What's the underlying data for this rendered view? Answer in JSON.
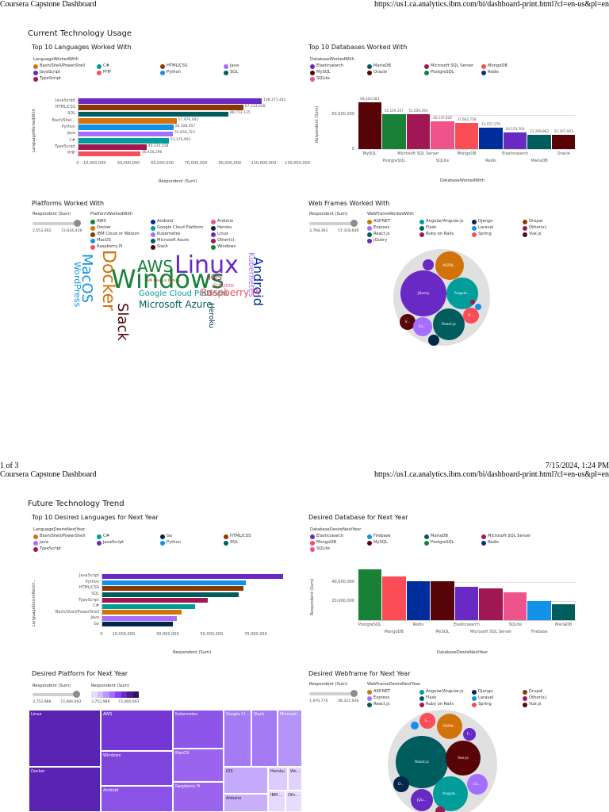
{
  "header1": {
    "left": "Coursera Capstone Dashboard",
    "right": "https://us1.ca.analytics.ibm.com/bi/dashboard-print.html?cl=en-us&pl=en"
  },
  "footer1": {
    "page": "1 of 3",
    "date": "7/15/2024, 1:24 PM"
  },
  "header2": {
    "left": "Coursera Capstone Dashboard",
    "right": "https://us1.ca.analytics.ibm.com/bi/dashboard-print.html?cl=en-us&pl=en"
  },
  "section1": {
    "title": "Current Technology Usage"
  },
  "section2": {
    "title": "Future Technology Trend"
  },
  "colors": {
    "purple": "#6929c4",
    "cyan": "#1192e8",
    "teal": "#005d5d",
    "magenta": "#9f1853",
    "red": "#fa4d56",
    "darkred": "#570408",
    "green": "#198038",
    "navy": "#002d9c",
    "pink": "#ee538b",
    "brown": "#b28600",
    "tealc": "#009d9a",
    "dark": "#012749",
    "orange": "#8a3800",
    "lavender": "#a56eff"
  },
  "lang_chart": {
    "title": "Top 10 Languages Worked With",
    "legend_title": "LanguageWorkedWith",
    "legend": [
      {
        "label": "Bash/Shell/PowerShell",
        "color": "#d2730a"
      },
      {
        "label": "C#",
        "color": "#009d9a"
      },
      {
        "label": "HTML/CSS",
        "color": "#8a3800"
      },
      {
        "label": "Java",
        "color": "#a56eff"
      },
      {
        "label": "JavaScript",
        "color": "#6929c4"
      },
      {
        "label": "PHP",
        "color": "#fa4d56"
      },
      {
        "label": "Python",
        "color": "#1192e8"
      },
      {
        "label": "SQL",
        "color": "#005d5d"
      },
      {
        "label": "TypeScript",
        "color": "#9f1853"
      }
    ],
    "ylabel": "LanguageWorkedWith",
    "xlabel": "Respondent (Sum)"
  },
  "db_chart": {
    "title": "Top 10 Databases Worked With",
    "legend_title": "DatabaseWorkedWith",
    "legend": [
      {
        "label": "Elasticsearch",
        "color": "#6929c4"
      },
      {
        "label": "MariaDB",
        "color": "#005d5d"
      },
      {
        "label": "Microsoft SQL Server",
        "color": "#9f1853"
      },
      {
        "label": "MongoDB",
        "color": "#fa4d56"
      },
      {
        "label": "MySQL",
        "color": "#570408"
      },
      {
        "label": "Oracle",
        "color": "#570408"
      },
      {
        "label": "PostgreSQL",
        "color": "#198038"
      },
      {
        "label": "Redis",
        "color": "#002d9c"
      },
      {
        "label": "SQLite",
        "color": "#ee538b"
      }
    ],
    "ylabel": "Respondent (Sum)",
    "xlabel": "DatabaseWorkedWith"
  },
  "platform_chart": {
    "title": "Platforms Worked With",
    "slider_label": "Respondent (Sum)",
    "slider_min": "2,553,392",
    "slider_max": "72,834,418",
    "legend_title": "PlatformWorkedWith",
    "legend": [
      {
        "label": "AWS",
        "color": "#198038"
      },
      {
        "label": "Android",
        "color": "#002d9c"
      },
      {
        "label": "Arduino",
        "color": "#ee538b"
      },
      {
        "label": "Docker",
        "color": "#d2730a"
      },
      {
        "label": "Google Cloud Platform",
        "color": "#009d9a"
      },
      {
        "label": "Heroku",
        "color": "#012749"
      },
      {
        "label": "IBM Cloud or Watson",
        "color": "#8a3800"
      },
      {
        "label": "Kubernetes",
        "color": "#a56eff"
      },
      {
        "label": "Linux",
        "color": "#6929c4"
      },
      {
        "label": "MacOS",
        "color": "#1192e8"
      },
      {
        "label": "Microsoft Azure",
        "color": "#005d5d"
      },
      {
        "label": "Other(s):",
        "color": "#9f1853"
      },
      {
        "label": "Raspberry Pi",
        "color": "#fa4d56"
      },
      {
        "label": "Slack",
        "color": "#570408"
      },
      {
        "label": "Windows",
        "color": "#198038"
      }
    ],
    "words": [
      {
        "text": "AWS",
        "color": "#198038"
      },
      {
        "text": "Linux",
        "color": "#6929c4"
      },
      {
        "text": "Windows",
        "color": "#198038"
      },
      {
        "text": "Docker",
        "color": "#d2730a"
      },
      {
        "text": "MacOS",
        "color": "#1192e8"
      },
      {
        "text": "WordPress",
        "color": "#1192e8"
      },
      {
        "text": "Slack",
        "color": "#570408"
      },
      {
        "text": "Google Cloud Platform",
        "color": "#009d9a"
      },
      {
        "text": "Raspberry Pi",
        "color": "#fa4d56"
      },
      {
        "text": "Microsoft Azure",
        "color": "#005d5d"
      },
      {
        "text": "Android",
        "color": "#002d9c"
      },
      {
        "text": "Kubernetes",
        "color": "#a56eff"
      },
      {
        "text": "iOS",
        "color": "#9f1853"
      },
      {
        "text": "Arduino",
        "color": "#ee538b"
      },
      {
        "text": "Heroku",
        "color": "#012749"
      },
      {
        "text": "IBM Cloud or Watson",
        "color": "#8a3800"
      }
    ]
  },
  "webframe_chart": {
    "title": "Web Frames Worked With",
    "slider_label": "Respondent (Sum)",
    "slider_min": "3,768,392",
    "slider_max": "57,318,608",
    "legend_title": "WebFrameWorkedWith",
    "legend": [
      {
        "label": "ASP.NET",
        "color": "#d2730a"
      },
      {
        "label": "Angular/Angular.js",
        "color": "#009d9a"
      },
      {
        "label": "Django",
        "color": "#012749"
      },
      {
        "label": "Drupal",
        "color": "#8a3800"
      },
      {
        "label": "Express",
        "color": "#a56eff"
      },
      {
        "label": "Flask",
        "color": "#005d5d"
      },
      {
        "label": "Laravel",
        "color": "#1192e8"
      },
      {
        "label": "Other(s):",
        "color": "#9f1853"
      },
      {
        "label": "React.js",
        "color": "#005d5d"
      },
      {
        "label": "Ruby on Rails",
        "color": "#9f1853"
      },
      {
        "label": "Spring",
        "color": "#fa4d56"
      },
      {
        "label": "Vue.js",
        "color": "#570408"
      },
      {
        "label": "jQuery",
        "color": "#6929c4"
      }
    ],
    "bubbles": [
      {
        "label": "jQuery",
        "color": "#6929c4"
      },
      {
        "label": "ASP.N...",
        "color": "#d2730a"
      },
      {
        "label": "Angula...",
        "color": "#009d9a"
      },
      {
        "label": "React.js",
        "color": "#005d5d"
      },
      {
        "label": "V...",
        "color": "#570408"
      },
      {
        "label": "Ex...",
        "color": "#a56eff"
      },
      {
        "label": "S...",
        "color": "#fa4d56"
      },
      {
        "label": "",
        "color": "#012749"
      },
      {
        "label": "",
        "color": "#6929c4"
      },
      {
        "label": "",
        "color": "#1192e8"
      },
      {
        "label": "",
        "color": "#9f1853"
      }
    ]
  },
  "desired_lang_chart": {
    "title": "Top 10 Desired Languages for Next Year",
    "legend_title": "LanguageDesireNextYear",
    "legend": [
      {
        "label": "Bash/Shell/PowerShell",
        "color": "#d2730a"
      },
      {
        "label": "C#",
        "color": "#009d9a"
      },
      {
        "label": "Go",
        "color": "#012749"
      },
      {
        "label": "HTML/CSS",
        "color": "#8a3800"
      },
      {
        "label": "Java",
        "color": "#a56eff"
      },
      {
        "label": "JavaScript",
        "color": "#6929c4"
      },
      {
        "label": "Python",
        "color": "#1192e8"
      },
      {
        "label": "SQL",
        "color": "#005d5d"
      },
      {
        "label": "TypeScript",
        "color": "#9f1853"
      }
    ],
    "ylabel": "LanguageDesireNextY...",
    "xlabel": "Respondent (Sum)"
  },
  "desired_db_chart": {
    "title": "Desired Database for Next Year",
    "legend_title": "DatabaseDesireNextYear",
    "legend": [
      {
        "label": "Elasticsearch",
        "color": "#6929c4"
      },
      {
        "label": "Firebase",
        "color": "#1192e8"
      },
      {
        "label": "MariaDB",
        "color": "#005d5d"
      },
      {
        "label": "Microsoft SQL Server",
        "color": "#9f1853"
      },
      {
        "label": "MongoDB",
        "color": "#fa4d56"
      },
      {
        "label": "MySQL",
        "color": "#570408"
      },
      {
        "label": "PostgreSQL",
        "color": "#198038"
      },
      {
        "label": "Redis",
        "color": "#002d9c"
      },
      {
        "label": "SQLite",
        "color": "#ee538b"
      }
    ],
    "ylabel": "Respondent (Sum)",
    "xlabel": "DatabaseDesireNextYear"
  },
  "desired_platform_chart": {
    "title": "Desired Platform for Next Year",
    "slider_label": "Respondent (Sum)",
    "slider_min": "3,752,988",
    "slider_max": "73,484,093",
    "scale_label": "Respondent (Sum)",
    "scale_min": "3,752,988",
    "scale_max": "73,484,093",
    "cells": [
      "Linux",
      "Docker",
      "AWS",
      "Windows",
      "Android",
      "Kubernetes",
      "MacOS",
      "Raspberry Pi",
      "Google Cl...",
      "Slack",
      "Microsof...",
      "iOS",
      "Arduino",
      "Heroku",
      "Wo...",
      "IBM ...",
      "Oth..."
    ]
  },
  "desired_webframe_chart": {
    "title": "Desired Webframe for Next Year",
    "slider_label": "Respondent (Sum)",
    "slider_min": "1,970,776",
    "slider_max": "58,321,928",
    "legend_title": "WebFrameDesireNextYear",
    "legend": [
      {
        "label": "ASP.NET",
        "color": "#d2730a"
      },
      {
        "label": "Angular/Angular.js",
        "color": "#009d9a"
      },
      {
        "label": "Django",
        "color": "#012749"
      },
      {
        "label": "Drupal",
        "color": "#8a3800"
      },
      {
        "label": "Express",
        "color": "#a56eff"
      },
      {
        "label": "Flask",
        "color": "#005d5d"
      },
      {
        "label": "Laravel",
        "color": "#1192e8"
      },
      {
        "label": "Other(s):",
        "color": "#9f1853"
      },
      {
        "label": "React.js",
        "color": "#005d5d"
      },
      {
        "label": "Ruby on Rails",
        "color": "#9f1853"
      },
      {
        "label": "Spring",
        "color": "#fa4d56"
      },
      {
        "label": "Vue.js",
        "color": "#570408"
      }
    ],
    "bubbles": [
      {
        "label": "React.js",
        "color": "#005d5d"
      },
      {
        "label": "Vue.js",
        "color": "#570408"
      },
      {
        "label": "Angula...",
        "color": "#009d9a"
      },
      {
        "label": "ASP.N...",
        "color": "#d2730a"
      },
      {
        "label": "jQu...",
        "color": "#6929c4"
      },
      {
        "label": "D...",
        "color": "#012749"
      },
      {
        "label": "Ex...",
        "color": "#a56eff"
      },
      {
        "label": "S...",
        "color": "#fa4d56"
      },
      {
        "label": "F...",
        "color": "#6929c4"
      },
      {
        "label": "",
        "color": "#1192e8"
      },
      {
        "label": "",
        "color": "#9f1853"
      }
    ]
  },
  "chart_data": [
    {
      "type": "bar",
      "orientation": "horizontal",
      "title": "Top 10 Languages Worked With",
      "xlabel": "Respondent (Sum)",
      "ylabel": "LanguageWorkedWith",
      "categories": [
        "JavaScript",
        "HTML/CSS",
        "SQL",
        "Bash/Shel...",
        "Python",
        "Java",
        "C#",
        "TypeScript",
        "PHP"
      ],
      "values": [
        108371442,
        97523608,
        88712115,
        57976092,
        56108957,
        55856723,
        53376993,
        40230558,
        36438296
      ],
      "value_labels": [
        "108,371,442",
        "97,523,608",
        "88,712,115",
        "57,976,092",
        "56,108,957",
        "55,856,723",
        "53,376,993",
        "40,230,558",
        "36,438,296"
      ],
      "colors": [
        "#6929c4",
        "#8a3800",
        "#005d5d",
        "#d2730a",
        "#1192e8",
        "#a56eff",
        "#009d9a",
        "#9f1853",
        "#fa4d56"
      ],
      "xticks": [
        "0",
        "10,000,000",
        "30,000,000",
        "50,000,000",
        "70,000,000",
        "90,000,000",
        "110,000,000",
        "130,000,000"
      ],
      "xtick_values": [
        0,
        10000000,
        30000000,
        50000000,
        70000000,
        90000000,
        110000000,
        130000000
      ],
      "xlim": [
        0,
        130000000
      ]
    },
    {
      "type": "bar",
      "title": "Top 10 Databases Worked With",
      "xlabel": "DatabaseWorkedWith",
      "ylabel": "Respondent (Sum)",
      "categories": [
        "MySQL",
        "PostgreSQL",
        "Microsoft SQL Server",
        "SQLite",
        "MongoDB",
        "Redis",
        "Elasticsearch",
        "MariaDB",
        "Oracle"
      ],
      "values": [
        68303583,
        51129157,
        51056294,
        40137629,
        37662758,
        31557370,
        24153703,
        21299862,
        21207003
      ],
      "value_labels": [
        "68,303,583",
        "51,129,157",
        "51,056,294",
        "40,137,629",
        "37,662,758",
        "31,557,370",
        "24,153,703",
        "21,299,862",
        "21,207,003"
      ],
      "colors": [
        "#570408",
        "#198038",
        "#9f1853",
        "#ee538b",
        "#fa4d56",
        "#002d9c",
        "#6929c4",
        "#005d5d",
        "#570408"
      ],
      "yticks": [
        "0",
        "50,000,000"
      ],
      "ytick_values": [
        0,
        50000000
      ],
      "ylim": [
        0,
        75000000
      ]
    },
    {
      "type": "bar",
      "orientation": "horizontal",
      "title": "Top 10 Desired Languages for Next Year",
      "xlabel": "Respondent (Sum)",
      "ylabel": "LanguageDesireNextY...",
      "categories": [
        "JavaScript",
        "Python",
        "HTML/CSS",
        "SQL",
        "TypeScript",
        "C#",
        "Bash/Shell/PowerShell",
        "Java",
        "Go"
      ],
      "values": [
        82000000,
        65000000,
        64000000,
        62000000,
        48000000,
        42000000,
        36000000,
        34000000,
        32000000
      ],
      "colors": [
        "#6929c4",
        "#1192e8",
        "#8a3800",
        "#005d5d",
        "#9f1853",
        "#009d9a",
        "#d2730a",
        "#a56eff",
        "#012749"
      ],
      "xticks": [
        "0",
        "10,000,000",
        "30,000,000",
        "50,000,000",
        "70,000,000"
      ],
      "xtick_values": [
        0,
        10000000,
        30000000,
        50000000,
        70000000
      ],
      "xlim": [
        0,
        90000000
      ]
    },
    {
      "type": "bar",
      "title": "Desired Database for Next Year",
      "xlabel": "DatabaseDesireNextYear",
      "ylabel": "Respondent (Sum)",
      "categories": [
        "PostgreSQL",
        "MongoDB",
        "Redis",
        "MySQL",
        "Elasticsearch",
        "Microsoft SQL Server",
        "SQLite",
        "Firebase",
        "MariaDB"
      ],
      "values": [
        53000000,
        46000000,
        41000000,
        40500000,
        35000000,
        33000000,
        29500000,
        20000000,
        17000000
      ],
      "colors": [
        "#198038",
        "#fa4d56",
        "#002d9c",
        "#570408",
        "#6929c4",
        "#9f1853",
        "#ee538b",
        "#1192e8",
        "#005d5d"
      ],
      "yticks": [
        "20,000,000",
        "40,000,000"
      ],
      "ytick_values": [
        20000000,
        40000000
      ],
      "ylim": [
        0,
        55000000
      ]
    },
    {
      "type": "heatmap",
      "subtype": "treemap",
      "title": "Desired Platform for Next Year",
      "categories": [
        "Linux",
        "Docker",
        "AWS",
        "Windows",
        "Android",
        "Kubernetes",
        "MacOS",
        "Raspberry Pi",
        "Google Cl...",
        "Slack",
        "Microsof...",
        "iOS",
        "Arduino",
        "Heroku",
        "Wo...",
        "IBM ...",
        "Oth..."
      ],
      "value_range": [
        3752988,
        73484093
      ]
    }
  ]
}
